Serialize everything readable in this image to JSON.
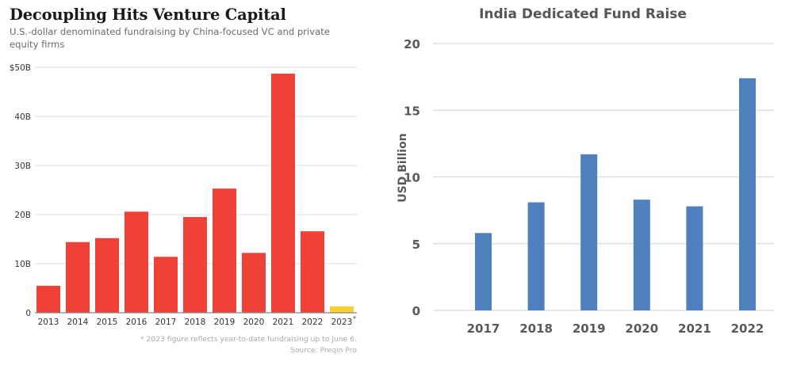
{
  "chart_data": [
    {
      "type": "bar",
      "title": "Decoupling Hits Venture Capital",
      "subtitle": "U.S.-dollar denominated fundraising by China-focused VC and private equity firms",
      "xlabel": "",
      "ylabel": "",
      "categories": [
        "2013",
        "2014",
        "2015",
        "2016",
        "2017",
        "2018",
        "2019",
        "2020",
        "2021",
        "2022",
        "2023*"
      ],
      "values": [
        5.5,
        14.4,
        15.2,
        20.6,
        11.4,
        19.5,
        25.3,
        12.2,
        48.7,
        16.6,
        1.3
      ],
      "unit": "USD billions",
      "ylim": [
        0,
        50
      ],
      "yticks": [
        0,
        10,
        20,
        30,
        40,
        50
      ],
      "ytick_labels": [
        "0",
        "10B",
        "20B",
        "30B",
        "40B",
        "$50B"
      ],
      "grid": true,
      "colors": {
        "default": "#ef4136",
        "highlight": "#f7d132",
        "grid": "#e6e6e6",
        "axis": "#888888",
        "tick_text": "#333333"
      },
      "highlight_category": "2023*",
      "footnote": "* 2023 figure reflects year-to-date fundraising up to June 6.",
      "source": "Source: Preqin Pro"
    },
    {
      "type": "bar",
      "title": "India Dedicated Fund Raise",
      "xlabel": "",
      "ylabel": "USD Billion",
      "categories": [
        "2017",
        "2018",
        "2019",
        "2020",
        "2021",
        "2022"
      ],
      "values": [
        5.8,
        8.1,
        11.7,
        8.3,
        7.8,
        17.4
      ],
      "ylim": [
        0,
        20
      ],
      "yticks": [
        0,
        5,
        10,
        15,
        20
      ],
      "ytick_labels": [
        "0",
        "5",
        "10",
        "15",
        "20"
      ],
      "grid": true,
      "colors": {
        "bar": "#4e80bd",
        "grid": "#d9d9d9",
        "tick_text": "#595959"
      }
    }
  ]
}
